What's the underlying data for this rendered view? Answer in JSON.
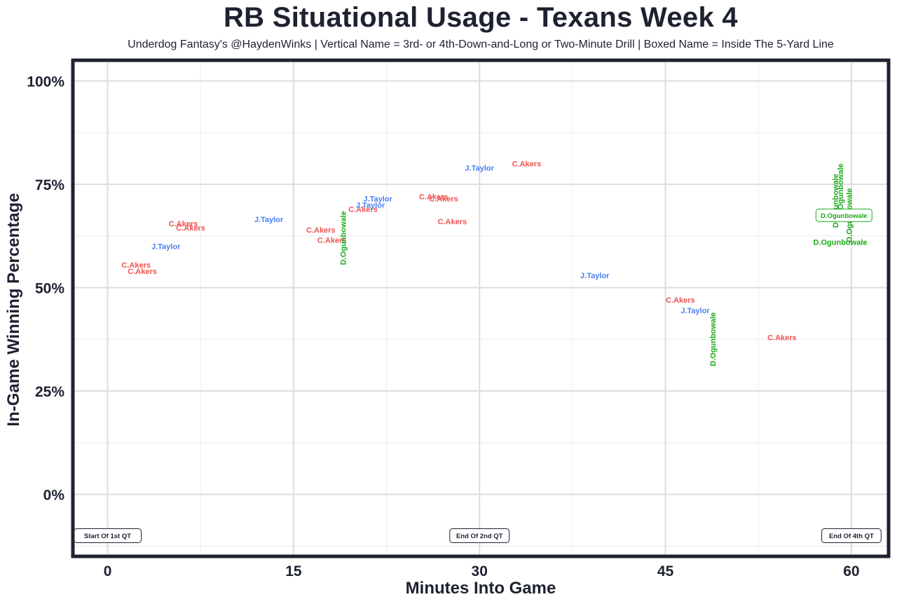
{
  "chart_data": {
    "type": "scatter",
    "title": "RB Situational Usage - Texans Week 4",
    "subtitle": "Underdog Fantasy's @HaydenWinks | Vertical Name = 3rd- or 4th-Down-and-Long or Two-Minute Drill | Boxed Name = Inside The 5-Yard Line",
    "xlabel": "Minutes Into Game",
    "ylabel": "In-Game Winning Percentage",
    "xlim": [
      -2.8,
      63
    ],
    "ylim": [
      -15,
      105
    ],
    "x_ticks": [
      0,
      15,
      30,
      45,
      60
    ],
    "x_tick_labels": [
      "0",
      "15",
      "30",
      "45",
      "60"
    ],
    "y_ticks": [
      0,
      25,
      50,
      75,
      100
    ],
    "y_tick_labels": [
      "0%",
      "25%",
      "50%",
      "75%",
      "100%"
    ],
    "grid": true,
    "colors": {
      "C.Akers": "#f0524f",
      "J.Taylor": "#4a7ff0",
      "D.Ogunbowale": "#1aaa1a"
    },
    "series": [
      {
        "name": "C.Akers",
        "points": [
          {
            "x": 2.3,
            "y": 55.5,
            "label": "C.Akers"
          },
          {
            "x": 2.8,
            "y": 54,
            "label": "C.Akers"
          },
          {
            "x": 6.1,
            "y": 65.5,
            "label": "C.Akers"
          },
          {
            "x": 6.7,
            "y": 64.5,
            "label": "C.Akers"
          },
          {
            "x": 17.2,
            "y": 64,
            "label": "C.Akers"
          },
          {
            "x": 18.1,
            "y": 61.5,
            "label": "C.Akers"
          },
          {
            "x": 20.6,
            "y": 69,
            "label": "C.Akers"
          },
          {
            "x": 26.3,
            "y": 72,
            "label": "C.Akers"
          },
          {
            "x": 27.1,
            "y": 71.5,
            "label": "C.Akers"
          },
          {
            "x": 27.8,
            "y": 66,
            "label": "C.Akers"
          },
          {
            "x": 33.8,
            "y": 80,
            "label": "C.Akers"
          },
          {
            "x": 46.2,
            "y": 47,
            "label": "C.Akers"
          },
          {
            "x": 54.4,
            "y": 38,
            "label": "C.Akers"
          }
        ]
      },
      {
        "name": "J.Taylor",
        "points": [
          {
            "x": 4.7,
            "y": 60,
            "label": "J.Taylor"
          },
          {
            "x": 13,
            "y": 66.5,
            "label": "J.Taylor"
          },
          {
            "x": 21.2,
            "y": 70,
            "label": "J.Taylor"
          },
          {
            "x": 21.8,
            "y": 71.5,
            "label": "J.Taylor"
          },
          {
            "x": 30,
            "y": 79,
            "label": "J.Taylor"
          },
          {
            "x": 39.3,
            "y": 53,
            "label": "J.Taylor"
          },
          {
            "x": 47.4,
            "y": 44.5,
            "label": "J.Taylor"
          }
        ]
      },
      {
        "name": "D.Ogunbowale",
        "points": [
          {
            "x": 19,
            "y": 62,
            "label": "D.Ogunbowale",
            "style": "vertical"
          },
          {
            "x": 48.8,
            "y": 37.5,
            "label": "D.Ogunbowale",
            "style": "vertical"
          },
          {
            "x": 58.7,
            "y": 71,
            "label": "D.Ogunbowale",
            "style": "vertical"
          },
          {
            "x": 59.1,
            "y": 73.5,
            "label": "D.Ogunbowale",
            "style": "vertical"
          },
          {
            "x": 59.8,
            "y": 67.5,
            "label": "D.Ogunbowale",
            "style": "vertical"
          },
          {
            "x": 59.4,
            "y": 67.5,
            "label": "D.Ogunbowale",
            "style": "boxed"
          },
          {
            "x": 59.1,
            "y": 61,
            "label": "D.Ogunbowale"
          }
        ]
      }
    ],
    "annotations": [
      {
        "x": 0,
        "y": -10,
        "text": "Start Of 1st QT"
      },
      {
        "x": 30,
        "y": -10,
        "text": "End Of 2nd QT"
      },
      {
        "x": 60,
        "y": -10,
        "text": "End Of 4th QT"
      }
    ]
  }
}
